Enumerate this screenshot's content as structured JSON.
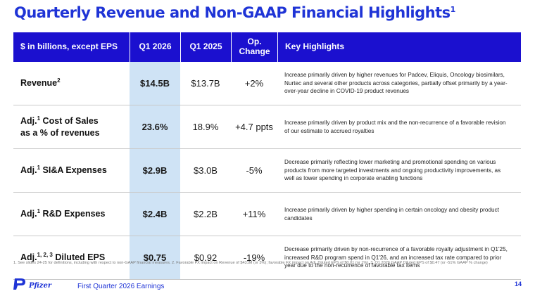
{
  "title": {
    "text": "Quarterly Revenue and Non-GAAP Financial Highlights",
    "sup": "1"
  },
  "table": {
    "headers": {
      "metric": "$ in billions, except EPS",
      "q1_2026": "Q1 2026",
      "q1_2025": "Q1 2025",
      "op_change": "Op. Change",
      "highlights": "Key Highlights"
    },
    "rows": [
      {
        "prefix": "Revenue",
        "sup": "2",
        "suffix": "",
        "q1_2026": "$14.5B",
        "q1_2025": "$13.7B",
        "change": "+2%",
        "highlight": "Increase primarily driven by higher revenues for Padcev, Eliquis, Oncology biosimilars, Nurtec and several other products across categories, partially offset primarily by a year-over-year decline in COVID-19 product revenues"
      },
      {
        "prefix": "Adj.",
        "sup": "1",
        "suffix": " Cost of Sales",
        "line2": "as a % of revenues",
        "q1_2026": "23.6%",
        "q1_2025": "18.9%",
        "change": "+4.7 ppts",
        "highlight": "Increase primarily driven by product mix and the non-recurrence of a favorable revision of our estimate to accrued royalties"
      },
      {
        "prefix": "Adj.",
        "sup": "1",
        "suffix": " SI&A Expenses",
        "q1_2026": "$2.9B",
        "q1_2025": "$3.0B",
        "change": "-5%",
        "highlight": "Decrease primarily reflecting lower marketing and promotional spending on various products from more targeted investments and ongoing productivity improvements, as well as lower spending in corporate enabling functions"
      },
      {
        "prefix": "Adj.",
        "sup": "1",
        "suffix": " R&D Expenses",
        "q1_2026": "$2.4B",
        "q1_2025": "$2.2B",
        "change": "+11%",
        "highlight": "Increase primarily driven by higher spending in certain oncology and obesity product candidates"
      },
      {
        "prefix": "Adj.",
        "sup": "1, 2, 3",
        "suffix": " Diluted EPS",
        "q1_2026": "$0.75",
        "q1_2025": "$0.92",
        "change": "-19%",
        "highlight": "Decrease primarily driven by non-recurrence of a favorable royalty adjustment in Q1'25, increased R&D program spend in Q1'26, and an increased tax rate compared to prior year due to the non-recurrence of favorable tax items"
      }
    ]
  },
  "footnote": "1. See slides 24-25 for definitions, including with respect to non-GAAP financial measures. 2. Favorable FX impact on Revenue of $431M (or 3%); favorable FX impact on Adj. Diluted EPS of $0.01 (or 1%). 3. Q1 2026 GAAP Diluted EPS of $0.47 (or -51% GAAP % change)",
  "footer": {
    "logo_text": "Pfizer",
    "label": "First Quarter 2026 Earnings",
    "page": "14"
  },
  "colors": {
    "brand_blue": "#1f34d6",
    "header_bg": "#1b10cf",
    "highlight_col": "#cfe3f5"
  },
  "icons": {
    "logo": "pfizer-logo-icon"
  }
}
